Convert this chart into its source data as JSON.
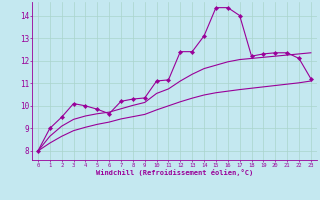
{
  "xlabel": "Windchill (Refroidissement éolien,°C)",
  "background_color": "#c4e8f0",
  "line_color": "#990099",
  "grid_color": "#aad4cc",
  "xlim": [
    -0.5,
    23.5
  ],
  "ylim": [
    7.6,
    14.6
  ],
  "xticks": [
    0,
    1,
    2,
    3,
    4,
    5,
    6,
    7,
    8,
    9,
    10,
    11,
    12,
    13,
    14,
    15,
    16,
    17,
    18,
    19,
    20,
    21,
    22,
    23
  ],
  "yticks": [
    8,
    9,
    10,
    11,
    12,
    13,
    14
  ],
  "series1_x": [
    0,
    1,
    2,
    3,
    4,
    5,
    6,
    7,
    8,
    9,
    10,
    11,
    12,
    13,
    14,
    15,
    16,
    17,
    18,
    19,
    20,
    21,
    22,
    23
  ],
  "series1_y": [
    8.0,
    9.0,
    9.5,
    10.1,
    10.0,
    9.85,
    9.65,
    10.2,
    10.3,
    10.35,
    11.1,
    11.15,
    12.4,
    12.4,
    13.1,
    14.35,
    14.35,
    14.0,
    12.2,
    12.3,
    12.35,
    12.35,
    12.1,
    11.2
  ],
  "series2_x": [
    0,
    1,
    2,
    3,
    4,
    5,
    6,
    7,
    8,
    9,
    10,
    11,
    12,
    13,
    14,
    15,
    16,
    17,
    18,
    19,
    20,
    21,
    22,
    23
  ],
  "series2_y": [
    8.0,
    8.65,
    9.1,
    9.4,
    9.55,
    9.65,
    9.72,
    9.87,
    10.02,
    10.15,
    10.55,
    10.75,
    11.1,
    11.4,
    11.65,
    11.8,
    11.95,
    12.05,
    12.1,
    12.15,
    12.2,
    12.25,
    12.3,
    12.35
  ],
  "series3_x": [
    0,
    1,
    2,
    3,
    4,
    5,
    6,
    7,
    8,
    9,
    10,
    11,
    12,
    13,
    14,
    15,
    16,
    17,
    18,
    19,
    20,
    21,
    22,
    23
  ],
  "series3_y": [
    8.0,
    8.35,
    8.65,
    8.9,
    9.05,
    9.18,
    9.28,
    9.42,
    9.52,
    9.62,
    9.82,
    10.0,
    10.18,
    10.34,
    10.48,
    10.58,
    10.65,
    10.72,
    10.78,
    10.84,
    10.9,
    10.96,
    11.02,
    11.1
  ]
}
